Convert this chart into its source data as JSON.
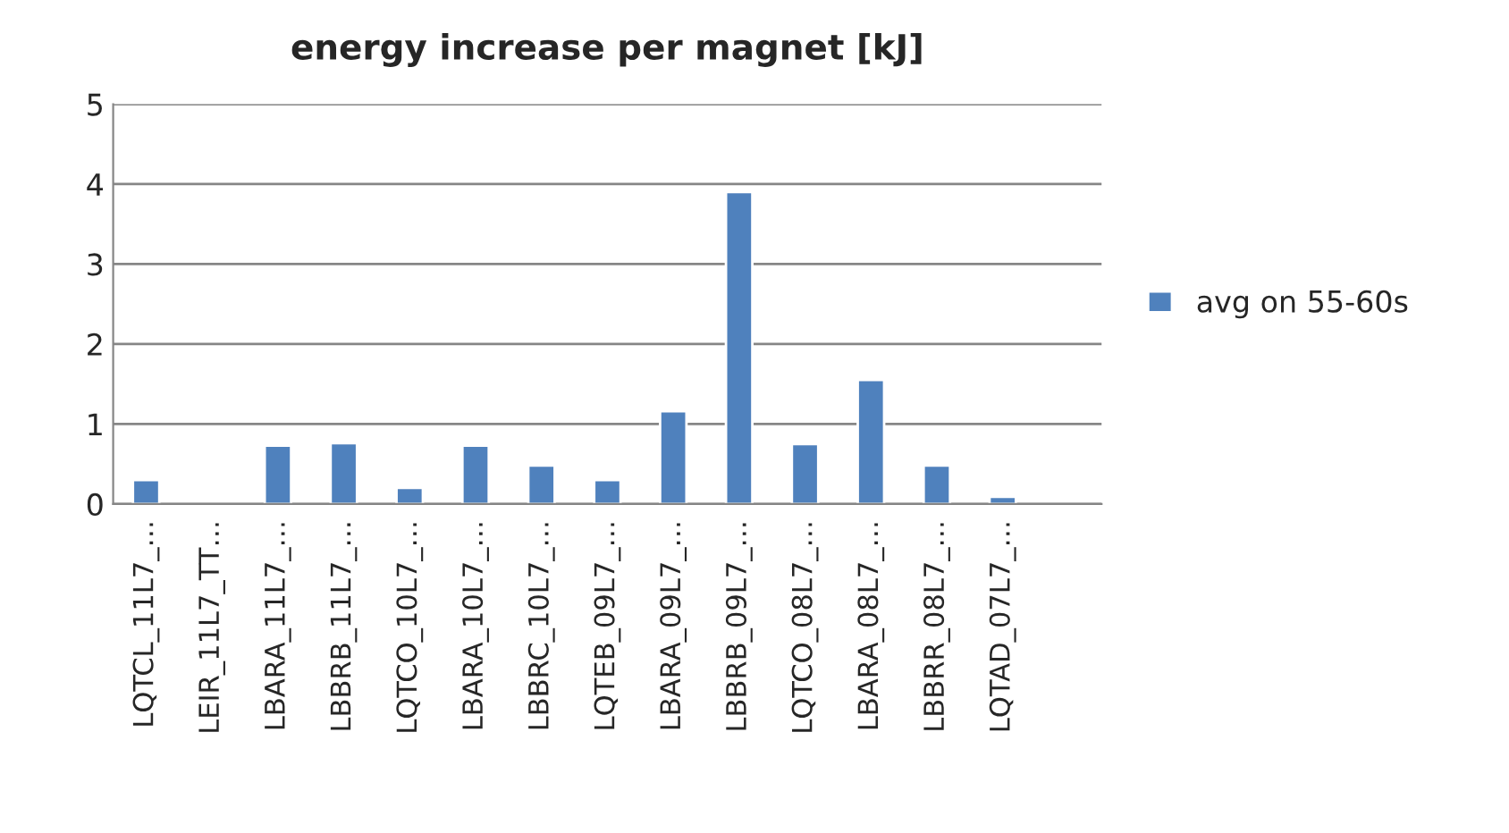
{
  "chart_data": {
    "type": "bar",
    "title": "energy increase per magnet [kJ]",
    "categories": [
      "LQTCL_11L7_…",
      "LEIR_11L7_TT…",
      "LBARA_11L7_…",
      "LBBRB_11L7_…",
      "LQTCO_10L7_…",
      "LBARA_10L7_…",
      "LBBRC_10L7_…",
      "LQTEB_09L7_…",
      "LBARA_09L7_…",
      "LBBRB_09L7_…",
      "LQTCO_08L7_…",
      "LBARA_08L7_…",
      "LBBRR_08L7_…",
      "LQTAD_07L7_…",
      null
    ],
    "series": [
      {
        "name": "avg on 55-60s",
        "color": "#4f81bd",
        "values": [
          0.3,
          null,
          0.73,
          0.76,
          0.2,
          0.73,
          0.48,
          0.3,
          1.16,
          3.9,
          0.75,
          1.55,
          0.48,
          0.09,
          null
        ]
      }
    ],
    "ylim": [
      0,
      5
    ],
    "yticks": [
      0,
      1,
      2,
      3,
      4,
      5
    ],
    "grid": "y",
    "legend": "right"
  }
}
